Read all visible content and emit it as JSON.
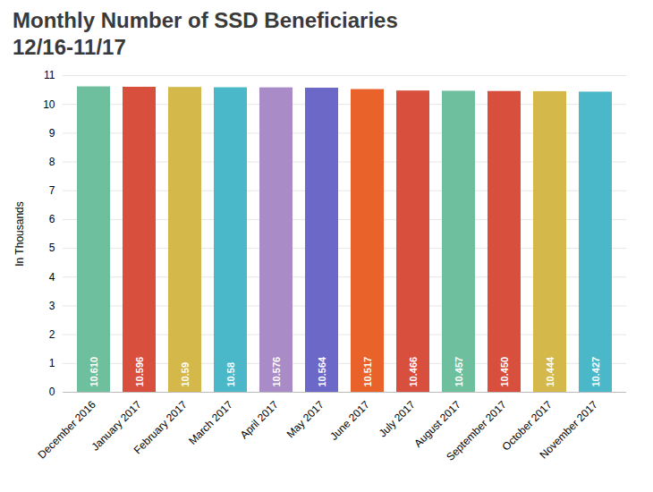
{
  "chart_data": {
    "type": "bar",
    "title": "Monthly Number of SSD Beneficiaries",
    "subtitle": "12/16-11/17",
    "ylabel": "In Thousands",
    "categories": [
      "December 2016",
      "January 2017",
      "February 2017",
      "March 2017",
      "April 2017",
      "May 2017",
      "June 2017",
      "July 2017",
      "August 2017",
      "September 2017",
      "October 2017",
      "November 2017"
    ],
    "values": [
      10.61,
      10.596,
      10.59,
      10.58,
      10.576,
      10.564,
      10.517,
      10.466,
      10.457,
      10.45,
      10.444,
      10.427
    ],
    "value_labels": [
      "10.610",
      "10.596",
      "10.59",
      "10.58",
      "10.576",
      "10.564",
      "10.517",
      "10.466",
      "10.457",
      "10.450",
      "10.444",
      "10.427"
    ],
    "colors": [
      "#6dbf9e",
      "#d94f3d",
      "#d4b84a",
      "#4ab8c8",
      "#a98bc8",
      "#6b68c8",
      "#e8622a",
      "#d94f3d",
      "#6dbf9e",
      "#d94f3d",
      "#d4b84a",
      "#4ab8c8"
    ],
    "ylim": [
      0,
      11
    ],
    "yticks": [
      0,
      1,
      2,
      3,
      4,
      5,
      6,
      7,
      8,
      9,
      10,
      11
    ],
    "grid": true,
    "data_labels": true
  }
}
